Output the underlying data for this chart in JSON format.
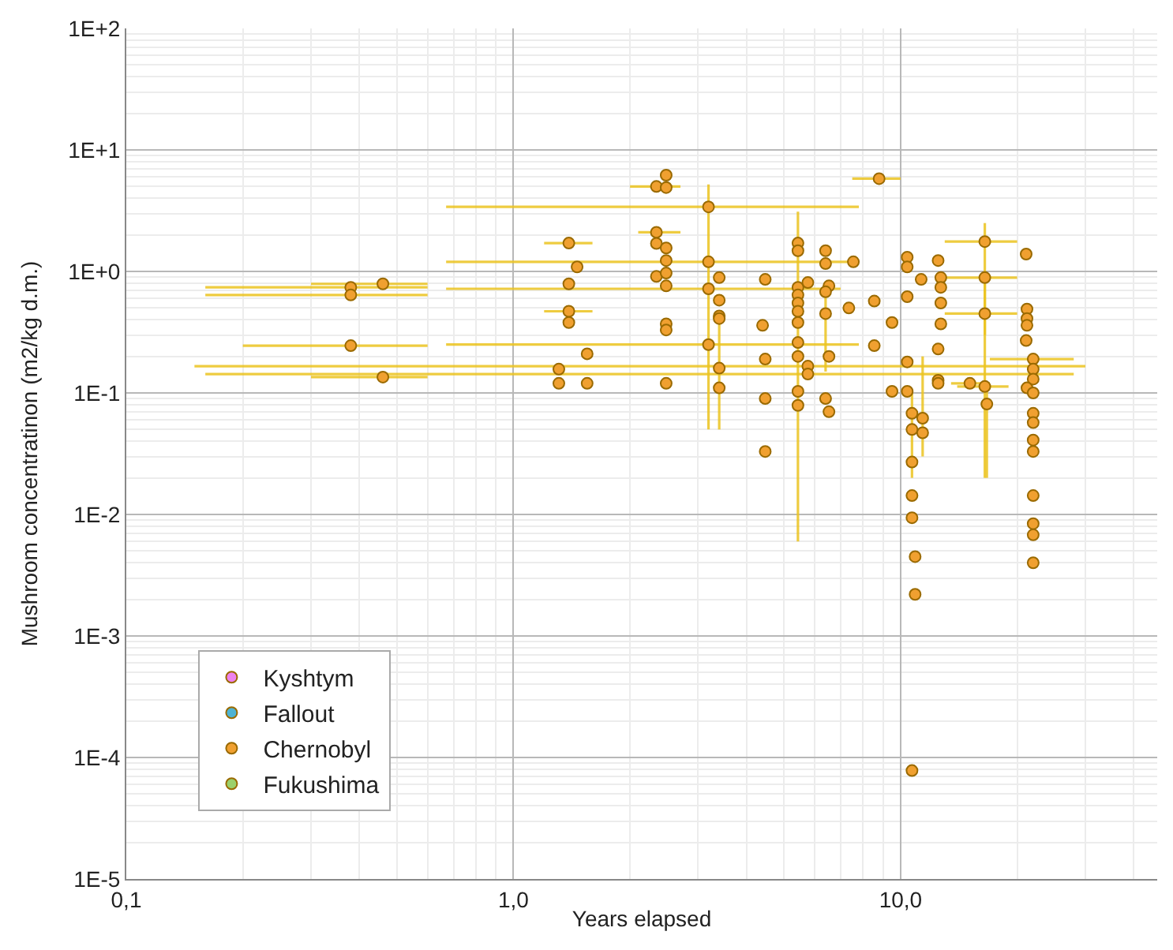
{
  "chart_data": {
    "type": "scatter",
    "xlabel": "Years elapsed",
    "ylabel": "Mushroom concentratinon (m2/kg d.m.)",
    "log": "xy",
    "grid": true,
    "legend": "bottom left",
    "marker": "circle",
    "xlim": [
      0.1,
      46
    ],
    "ylim": [
      1e-05,
      100
    ],
    "xticks": [
      {
        "value": 0.1,
        "label": "0,1"
      },
      {
        "value": 1,
        "label": "1,0"
      },
      {
        "value": 10,
        "label": "10,0"
      }
    ],
    "yticks": [
      {
        "value": 1e-05,
        "label": "1E-5"
      },
      {
        "value": 0.0001,
        "label": "1E-4"
      },
      {
        "value": 0.001,
        "label": "1E-3"
      },
      {
        "value": 0.01,
        "label": "1E-2"
      },
      {
        "value": 0.1,
        "label": "1E-1"
      },
      {
        "value": 1,
        "label": "1E+0"
      },
      {
        "value": 10,
        "label": "1E+1"
      },
      {
        "value": 100,
        "label": "1E+2"
      }
    ],
    "series": [
      {
        "name": "Kyshtym",
        "color": "#ee82ee"
      },
      {
        "name": "Fallout",
        "color": "#4eb3d3"
      },
      {
        "name": "Chernobyl",
        "color": "#f0a030",
        "x": [
          0.38,
          0.38,
          0.38,
          0.46,
          0.46,
          1.39,
          1.46,
          1.39,
          1.39,
          1.39,
          1.55,
          1.31,
          1.31,
          1.55,
          2.48,
          2.34,
          2.48,
          2.34,
          2.34,
          2.48,
          2.48,
          2.34,
          2.48,
          2.48,
          2.48,
          2.48,
          2.48,
          3.19,
          3.19,
          3.19,
          3.19,
          3.4,
          3.4,
          3.4,
          3.4,
          3.4,
          3.4,
          8.8,
          5.43,
          5.43,
          6.4,
          6.4,
          7.55,
          10.4,
          10.4,
          12.5,
          16.5,
          21.1,
          4.47,
          5.43,
          5.43,
          5.43,
          5.43,
          5.43,
          5.76,
          6.53,
          6.4,
          11.3,
          12.7,
          12.7,
          10.4,
          8.55,
          7.35,
          6.4,
          12.7,
          16.5,
          16.5,
          21.2,
          21.2,
          21.2,
          21.1,
          9.5,
          4.4,
          12.7,
          8.55,
          5.43,
          5.43,
          4.47,
          6.53,
          12.5,
          10.4,
          5.76,
          5.76,
          12.5,
          12.5,
          15.1,
          16.5,
          22.0,
          22.0,
          22.0,
          21.2,
          22.0,
          4.47,
          5.43,
          5.43,
          6.4,
          6.53,
          9.5,
          10.4,
          16.7,
          10.7,
          11.4,
          10.7,
          11.4,
          22.0,
          22.0,
          22.0,
          22.0,
          4.47,
          10.7,
          22.0,
          10.7,
          10.7,
          10.9,
          10.9,
          10.7,
          22.0,
          22.0,
          22.0
        ],
        "values": [
          0.74,
          0.64,
          0.245,
          0.79,
          0.135,
          1.71,
          1.09,
          0.79,
          0.47,
          0.38,
          0.21,
          0.157,
          0.12,
          0.12,
          6.2,
          5.0,
          4.9,
          2.1,
          1.7,
          1.56,
          1.23,
          0.91,
          0.97,
          0.76,
          0.37,
          0.33,
          0.12,
          3.4,
          1.2,
          0.72,
          0.25,
          0.89,
          0.58,
          0.43,
          0.41,
          0.16,
          0.11,
          5.8,
          1.71,
          1.48,
          1.48,
          1.16,
          1.2,
          1.31,
          1.09,
          1.23,
          1.76,
          1.39,
          0.86,
          0.74,
          0.64,
          0.55,
          0.47,
          0.38,
          0.81,
          0.76,
          0.68,
          0.86,
          0.89,
          0.74,
          0.62,
          0.57,
          0.5,
          0.45,
          0.55,
          0.89,
          0.45,
          0.49,
          0.41,
          0.36,
          0.27,
          0.38,
          0.36,
          0.37,
          0.245,
          0.26,
          0.2,
          0.19,
          0.2,
          0.23,
          0.18,
          0.166,
          0.143,
          0.127,
          0.12,
          0.12,
          0.113,
          0.19,
          0.157,
          0.13,
          0.11,
          0.1,
          0.09,
          0.103,
          0.079,
          0.09,
          0.07,
          0.103,
          0.103,
          0.081,
          0.068,
          0.062,
          0.05,
          0.047,
          0.068,
          0.057,
          0.041,
          0.033,
          0.033,
          0.027,
          0.0143,
          0.0143,
          0.0094,
          0.0045,
          0.0022,
          7.8e-05,
          0.0084,
          0.0068,
          0.004
        ],
        "xerrors": [
          [
            0.16,
            0.6
          ],
          [
            0.16,
            0.6
          ],
          [
            0.2,
            0.6
          ],
          [
            0.3,
            0.6
          ],
          [
            0.3,
            0.6
          ],
          [
            1.2,
            1.6
          ],
          null,
          null,
          [
            1.2,
            1.6
          ],
          null,
          null,
          null,
          null,
          null,
          null,
          [
            2.0,
            2.7
          ],
          null,
          [
            2.1,
            2.7
          ],
          null,
          null,
          null,
          null,
          null,
          null,
          null,
          null,
          null,
          [
            0.67,
            7.8
          ],
          [
            0.67,
            7.8
          ],
          [
            0.67,
            7.0
          ],
          [
            0.67,
            7.8
          ],
          null,
          null,
          null,
          null,
          null,
          null,
          [
            7.5,
            10.0
          ],
          null,
          null,
          null,
          null,
          null,
          null,
          null,
          null,
          [
            13,
            20
          ],
          null,
          null,
          null,
          null,
          null,
          null,
          null,
          null,
          null,
          null,
          null,
          null,
          null,
          null,
          null,
          null,
          null,
          null,
          [
            13,
            20
          ],
          [
            13,
            20
          ],
          null,
          null,
          null,
          null,
          null,
          null,
          null,
          null,
          null,
          null,
          null,
          null,
          null,
          null,
          [
            0.15,
            30
          ],
          [
            0.16,
            28
          ],
          null,
          null,
          [
            13.5,
            17
          ],
          [
            14,
            19
          ],
          [
            17,
            28
          ],
          null,
          null,
          null,
          null,
          null,
          null,
          null,
          null,
          null,
          null,
          null,
          null,
          null,
          null,
          null,
          null,
          null,
          null,
          null,
          null,
          null,
          null,
          null,
          null,
          null,
          null,
          null,
          null,
          null,
          null,
          null
        ],
        "errors": [
          null,
          null,
          null,
          null,
          null,
          null,
          null,
          null,
          null,
          null,
          null,
          null,
          null,
          null,
          null,
          null,
          null,
          null,
          null,
          null,
          null,
          null,
          null,
          null,
          null,
          null,
          null,
          [
            0.05,
            5.2
          ],
          null,
          null,
          null,
          null,
          null,
          null,
          null,
          [
            0.05,
            0.4
          ],
          null,
          null,
          null,
          null,
          null,
          null,
          null,
          null,
          null,
          null,
          [
            0.3,
            2.5
          ],
          null,
          null,
          null,
          null,
          null,
          null,
          null,
          null,
          null,
          null,
          null,
          null,
          null,
          null,
          null,
          null,
          [
            0.15,
            0.7
          ],
          null,
          null,
          [
            0.02,
            0.9
          ],
          null,
          null,
          null,
          null,
          null,
          null,
          null,
          null,
          [
            0.006,
            3.1
          ],
          null,
          null,
          null,
          null,
          null,
          null,
          null,
          null,
          null,
          null,
          null,
          null,
          null,
          null,
          null,
          null,
          null,
          null,
          null,
          null,
          null,
          null,
          null,
          [
            0.02,
            0.12
          ],
          [
            0.02,
            0.1
          ],
          [
            0.03,
            0.2
          ],
          null,
          null,
          null,
          null,
          null,
          null,
          null,
          null,
          null,
          null,
          null,
          null,
          null,
          null,
          null,
          null,
          null
        ]
      },
      {
        "name": "Fukushima",
        "color": "#9bd06b"
      }
    ]
  }
}
